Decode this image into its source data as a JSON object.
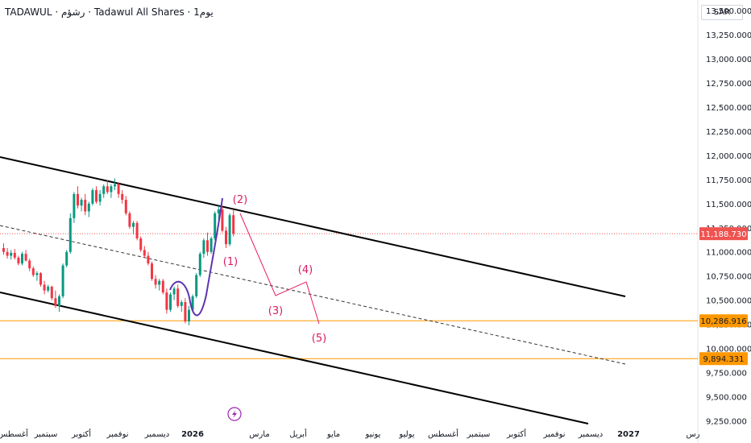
{
  "header": {
    "title": "TADAWUL · رشؤم · Tadawul All Shares · 1يوم",
    "currency": "SAR"
  },
  "chart_data": {
    "type": "candlestick",
    "y_axis": {
      "ticks": [
        13500,
        13250,
        13000,
        12750,
        12500,
        12250,
        12000,
        11750,
        11500,
        11250,
        11000,
        10750,
        10500,
        10250,
        10000,
        9750,
        9500,
        9250
      ],
      "ylim": [
        9020,
        13610
      ],
      "side": "right"
    },
    "x_axis": {
      "ticks": [
        "أغسطس",
        "سبتمبر",
        "أكتوبر",
        "نوفمبر",
        "ديسمبر",
        "2026",
        "مارس",
        "أبريل",
        "مايو",
        "يونيو",
        "يوليو",
        "أغسطس",
        "سبتمبر",
        "أكتوبر",
        "نوفمبر",
        "ديسمبر",
        "2027",
        "رس"
      ]
    },
    "price_labels": [
      {
        "value": 11188.73,
        "text": "11,188.730",
        "color": "#ef5350"
      },
      {
        "value": 10286.916,
        "text": "10,286.916",
        "color": "#ff9800"
      },
      {
        "value": 9894.331,
        "text": "9,894.331",
        "color": "#ff9800"
      }
    ],
    "horizontal_levels": [
      10286.916,
      9894.331
    ],
    "ohlc": [
      [
        11040,
        11090,
        10970,
        11000
      ],
      [
        11000,
        11040,
        10930,
        10960
      ],
      [
        10960,
        11020,
        10920,
        10990
      ],
      [
        10990,
        11030,
        10920,
        10940
      ],
      [
        10940,
        10960,
        10860,
        10880
      ],
      [
        10880,
        11000,
        10860,
        10980
      ],
      [
        10980,
        11020,
        10900,
        10910
      ],
      [
        10910,
        10930,
        10800,
        10830
      ],
      [
        10830,
        10850,
        10740,
        10760
      ],
      [
        10760,
        10800,
        10700,
        10780
      ],
      [
        10780,
        10790,
        10640,
        10660
      ],
      [
        10660,
        10700,
        10560,
        10600
      ],
      [
        10600,
        10660,
        10580,
        10640
      ],
      [
        10640,
        10650,
        10500,
        10520
      ],
      [
        10520,
        10600,
        10420,
        10440
      ],
      [
        10440,
        10560,
        10380,
        10540
      ],
      [
        10540,
        10880,
        10520,
        10860
      ],
      [
        10860,
        11020,
        10840,
        11000
      ],
      [
        11000,
        11400,
        10980,
        11350
      ],
      [
        11350,
        11620,
        11300,
        11600
      ],
      [
        11600,
        11680,
        11450,
        11480
      ],
      [
        11480,
        11560,
        11420,
        11540
      ],
      [
        11540,
        11600,
        11380,
        11420
      ],
      [
        11420,
        11520,
        11360,
        11500
      ],
      [
        11500,
        11660,
        11480,
        11640
      ],
      [
        11640,
        11680,
        11500,
        11520
      ],
      [
        11520,
        11640,
        11480,
        11600
      ],
      [
        11600,
        11700,
        11560,
        11680
      ],
      [
        11680,
        11740,
        11600,
        11620
      ],
      [
        11620,
        11700,
        11560,
        11680
      ],
      [
        11680,
        11760,
        11640,
        11700
      ],
      [
        11700,
        11720,
        11560,
        11600
      ],
      [
        11600,
        11640,
        11500,
        11540
      ],
      [
        11540,
        11580,
        11380,
        11400
      ],
      [
        11400,
        11420,
        11240,
        11260
      ],
      [
        11260,
        11320,
        11180,
        11300
      ],
      [
        11300,
        11320,
        11120,
        11140
      ],
      [
        11140,
        11160,
        11000,
        11020
      ],
      [
        11020,
        11060,
        10940,
        10960
      ],
      [
        10960,
        11000,
        10860,
        10880
      ],
      [
        10880,
        10900,
        10700,
        10720
      ],
      [
        10720,
        10760,
        10620,
        10660
      ],
      [
        10660,
        10720,
        10600,
        10700
      ],
      [
        10700,
        10720,
        10560,
        10580
      ],
      [
        10580,
        10620,
        10360,
        10400
      ],
      [
        10400,
        10580,
        10380,
        10560
      ],
      [
        10560,
        10640,
        10500,
        10620
      ],
      [
        10620,
        10660,
        10420,
        10440
      ],
      [
        10440,
        10500,
        10380,
        10480
      ],
      [
        10480,
        10520,
        10260,
        10280
      ],
      [
        10280,
        10440,
        10240,
        10400
      ],
      [
        10400,
        10560,
        10380,
        10540
      ],
      [
        10540,
        10780,
        10520,
        10760
      ],
      [
        10760,
        11000,
        10740,
        10980
      ],
      [
        10980,
        11140,
        10940,
        11120
      ],
      [
        11120,
        11200,
        10960,
        11000
      ],
      [
        11000,
        11160,
        10980,
        11140
      ],
      [
        11140,
        11420,
        11120,
        11400
      ],
      [
        11400,
        11480,
        11320,
        11440
      ],
      [
        11440,
        11470,
        11200,
        11220
      ],
      [
        11220,
        11260,
        11040,
        11080
      ],
      [
        11080,
        11400,
        11060,
        11380
      ],
      [
        11380,
        11440,
        11160,
        11188.73
      ]
    ],
    "annotations": {
      "channel": "descending",
      "wave_labels": [
        "(1)",
        "(2)",
        "(3)",
        "(4)",
        "(5)"
      ]
    }
  }
}
